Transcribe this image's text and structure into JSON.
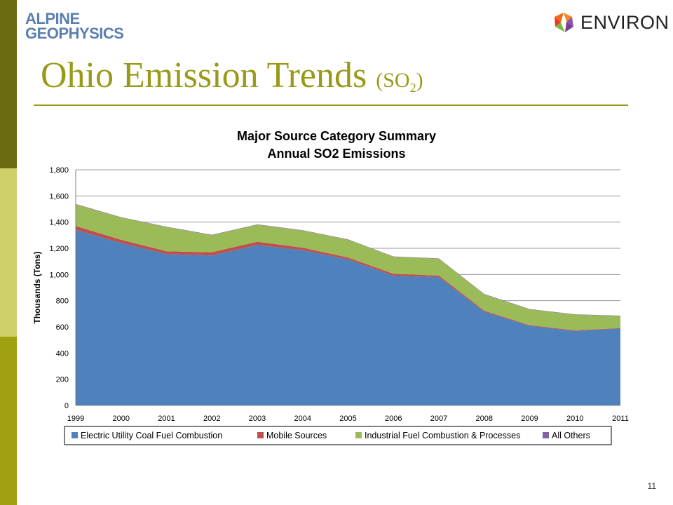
{
  "header": {
    "alpine_logo": [
      "ALPINE",
      "GEOPHYSICS"
    ],
    "environ_logo": "ENVIRON"
  },
  "slide": {
    "title_main": "Ohio Emission Trends ",
    "title_paren_open": "(SO",
    "title_sub": "2",
    "title_paren_close": ")",
    "page_number": "11"
  },
  "colors": {
    "electric": "#4f81bd",
    "mobile": "#c0504d",
    "industrial": "#9bbb59",
    "others": "#8064a2",
    "title_olive": "#9a9a18"
  },
  "chart_data": {
    "type": "area",
    "stacked": true,
    "title": [
      "Major Source Category Summary",
      "Annual SO2 Emissions"
    ],
    "ylabel": "Thousands (Tons)",
    "xlabel": "",
    "ylim": [
      0,
      1800
    ],
    "yticks": [
      "0",
      "200",
      "400",
      "600",
      "800",
      "1,000",
      "1,200",
      "1,400",
      "1,600",
      "1,800"
    ],
    "ytick_values": [
      0,
      200,
      400,
      600,
      800,
      1000,
      1200,
      1400,
      1600,
      1800
    ],
    "categories": [
      "1999",
      "2000",
      "2001",
      "2002",
      "2003",
      "2004",
      "2005",
      "2006",
      "2007",
      "2008",
      "2009",
      "2010",
      "2011"
    ],
    "grid": true,
    "legend_position": "bottom",
    "series": [
      {
        "name": "Electric Utility Coal Fuel Combustion",
        "values": [
          1340,
          1240,
          1155,
          1145,
          1225,
          1185,
          1115,
          990,
          980,
          715,
          608,
          568,
          588
        ]
      },
      {
        "name": "Mobile Sources",
        "values": [
          30,
          25,
          22,
          25,
          25,
          20,
          15,
          15,
          12,
          8,
          5,
          5,
          3
        ]
      },
      {
        "name": "Industrial Fuel Combustion & Processes",
        "values": [
          165,
          170,
          185,
          130,
          130,
          130,
          135,
          130,
          128,
          125,
          120,
          120,
          92
        ]
      },
      {
        "name": "All Others",
        "values": [
          3,
          3,
          3,
          3,
          3,
          3,
          3,
          3,
          3,
          3,
          3,
          3,
          3
        ]
      }
    ]
  }
}
